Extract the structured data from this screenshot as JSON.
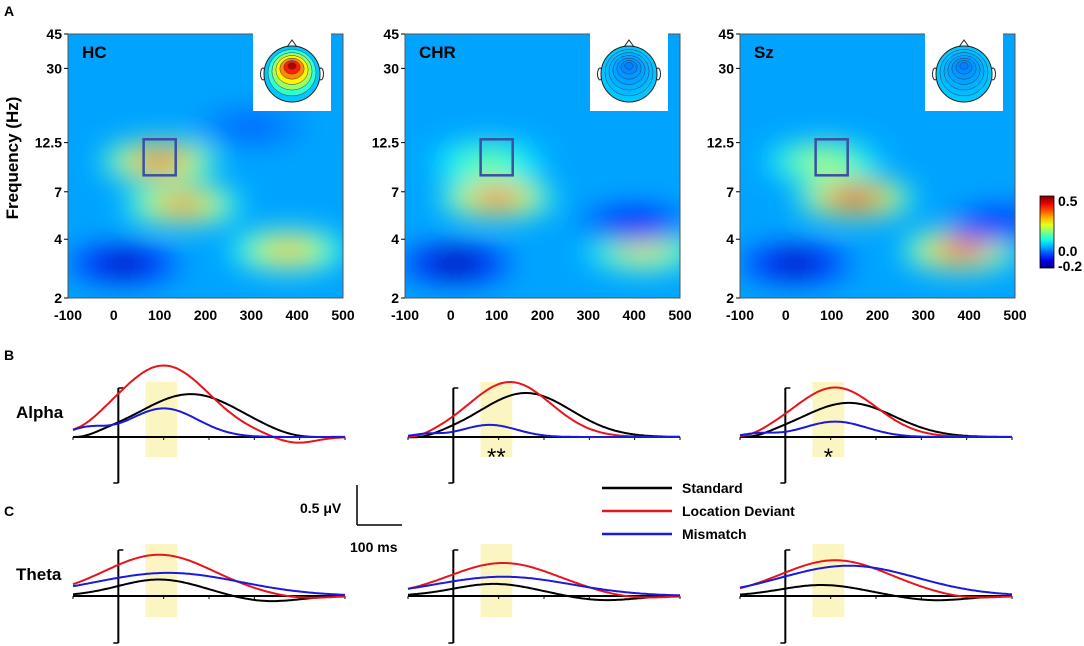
{
  "panel_labels": {
    "a": "A",
    "b": "B",
    "c": "C"
  },
  "chart_data": [
    {
      "type": "heatmap",
      "panel": "A",
      "ylabel": "Frequency (Hz)",
      "xlim": [
        -100,
        500
      ],
      "x_ticks": [
        "-100",
        "0",
        "100",
        "200",
        "300",
        "400",
        "500"
      ],
      "y_ticks": [
        "45",
        "30",
        "12.5",
        "7",
        "4",
        "2"
      ],
      "window": {
        "time_ms": [
          65,
          135
        ],
        "freq_hz": [
          8.5,
          13
        ]
      },
      "colorbar": {
        "min_label": "-0.2",
        "zero_label": "0.0",
        "max_label": "0.5",
        "range": [
          -0.2,
          0.5
        ]
      },
      "groups": [
        {
          "name": "HC",
          "topo_activity": 0.85,
          "blobs": [
            {
              "t": 100,
              "f": 10,
              "amp": 0.4
            },
            {
              "t": 150,
              "f": 6,
              "amp": 0.35
            },
            {
              "t": 380,
              "f": 3.5,
              "amp": 0.3
            },
            {
              "t": 20,
              "f": 3,
              "amp": -0.18
            },
            {
              "t": 300,
              "f": 15,
              "amp": -0.05
            }
          ]
        },
        {
          "name": "CHR",
          "topo_activity": 0.25,
          "blobs": [
            {
              "t": 100,
              "f": 6.5,
              "amp": 0.38
            },
            {
              "t": 80,
              "f": 10,
              "amp": 0.15
            },
            {
              "t": 420,
              "f": 3.5,
              "amp": 0.25
            },
            {
              "t": 10,
              "f": 3,
              "amp": -0.2
            },
            {
              "t": 400,
              "f": 4.8,
              "amp": -0.12
            }
          ]
        },
        {
          "name": "Sz",
          "topo_activity": 0.25,
          "blobs": [
            {
              "t": 150,
              "f": 6.5,
              "amp": 0.45
            },
            {
              "t": 80,
              "f": 10,
              "amp": 0.2
            },
            {
              "t": 380,
              "f": 3.5,
              "amp": 0.4
            },
            {
              "t": 20,
              "f": 3,
              "amp": -0.18
            },
            {
              "t": 470,
              "f": 4.8,
              "amp": -0.1
            }
          ]
        }
      ]
    },
    {
      "type": "line",
      "panel": "B",
      "row_label": "Alpha",
      "xlim": [
        -100,
        500
      ],
      "highlight_ms": [
        60,
        130
      ],
      "significance": [
        "",
        "**",
        "*"
      ],
      "series_names": [
        "Standard",
        "Location Deviant",
        "Mismatch"
      ],
      "groups": [
        {
          "name": "HC",
          "components": {
            "Standard": [
              {
                "t": 160,
                "a": 0.78,
                "w": 110
              },
              {
                "t": 390,
                "a": -0.05,
                "w": 50
              },
              {
                "t": -80,
                "a": -0.06,
                "w": 30
              }
            ],
            "Location Deviant": [
              {
                "t": 100,
                "a": 1.3,
                "w": 100
              },
              {
                "t": 390,
                "a": -0.12,
                "w": 45
              },
              {
                "t": -80,
                "a": -0.05,
                "w": 30
              }
            ],
            "Mismatch": [
              {
                "t": 100,
                "a": 0.52,
                "w": 75
              },
              {
                "t": -70,
                "a": 0.15,
                "w": 40
              }
            ]
          }
        },
        {
          "name": "CHR",
          "components": {
            "Standard": [
              {
                "t": 160,
                "a": 0.8,
                "w": 100
              },
              {
                "t": -70,
                "a": -0.05,
                "w": 30
              }
            ],
            "Location Deviant": [
              {
                "t": 125,
                "a": 1.0,
                "w": 90
              },
              {
                "t": -80,
                "a": -0.05,
                "w": 30
              }
            ],
            "Mismatch": [
              {
                "t": 80,
                "a": 0.22,
                "w": 60
              },
              {
                "t": -60,
                "a": 0.05,
                "w": 30
              }
            ]
          }
        },
        {
          "name": "Sz",
          "components": {
            "Standard": [
              {
                "t": 140,
                "a": 0.62,
                "w": 100
              },
              {
                "t": -70,
                "a": -0.05,
                "w": 30
              }
            ],
            "Location Deviant": [
              {
                "t": 110,
                "a": 0.9,
                "w": 90
              },
              {
                "t": -80,
                "a": -0.05,
                "w": 30
              }
            ],
            "Mismatch": [
              {
                "t": 110,
                "a": 0.28,
                "w": 70
              },
              {
                "t": -60,
                "a": 0.06,
                "w": 35
              }
            ]
          }
        }
      ]
    },
    {
      "type": "line",
      "panel": "C",
      "row_label": "Theta",
      "xlim": [
        -100,
        500
      ],
      "highlight_ms": [
        60,
        130
      ],
      "significance": [
        "",
        "",
        ""
      ],
      "series_names": [
        "Standard",
        "Location Deviant",
        "Mismatch"
      ],
      "groups": [
        {
          "name": "HC",
          "components": {
            "Standard": [
              {
                "t": 90,
                "a": 0.3,
                "w": 90
              },
              {
                "t": 330,
                "a": -0.1,
                "w": 70
              }
            ],
            "Location Deviant": [
              {
                "t": 90,
                "a": 0.75,
                "w": 120
              },
              {
                "t": 400,
                "a": -0.05,
                "w": 60
              }
            ],
            "Mismatch": [
              {
                "t": 110,
                "a": 0.42,
                "w": 160
              }
            ]
          }
        },
        {
          "name": "CHR",
          "components": {
            "Standard": [
              {
                "t": 90,
                "a": 0.22,
                "w": 90
              },
              {
                "t": 330,
                "a": -0.08,
                "w": 70
              }
            ],
            "Location Deviant": [
              {
                "t": 110,
                "a": 0.6,
                "w": 120
              },
              {
                "t": 400,
                "a": -0.05,
                "w": 60
              }
            ],
            "Mismatch": [
              {
                "t": 110,
                "a": 0.35,
                "w": 150
              }
            ]
          }
        },
        {
          "name": "Sz",
          "components": {
            "Standard": [
              {
                "t": 80,
                "a": 0.2,
                "w": 90
              },
              {
                "t": 330,
                "a": -0.08,
                "w": 70
              }
            ],
            "Location Deviant": [
              {
                "t": 110,
                "a": 0.65,
                "w": 120
              },
              {
                "t": 400,
                "a": -0.05,
                "w": 60
              }
            ],
            "Mismatch": [
              {
                "t": 140,
                "a": 0.55,
                "w": 150
              }
            ]
          }
        }
      ]
    }
  ],
  "legend": {
    "items": [
      {
        "label": "Standard",
        "color": "#000000"
      },
      {
        "label": "Location Deviant",
        "color": "#e8141b"
      },
      {
        "label": "Mismatch",
        "color": "#1a1adb"
      }
    ]
  },
  "scale_bar": {
    "amplitude_label": "0.5 μV",
    "time_label": "100 ms"
  },
  "colors": {
    "highlight": "#fbf5c2",
    "window_box": "#3c4fa0"
  }
}
